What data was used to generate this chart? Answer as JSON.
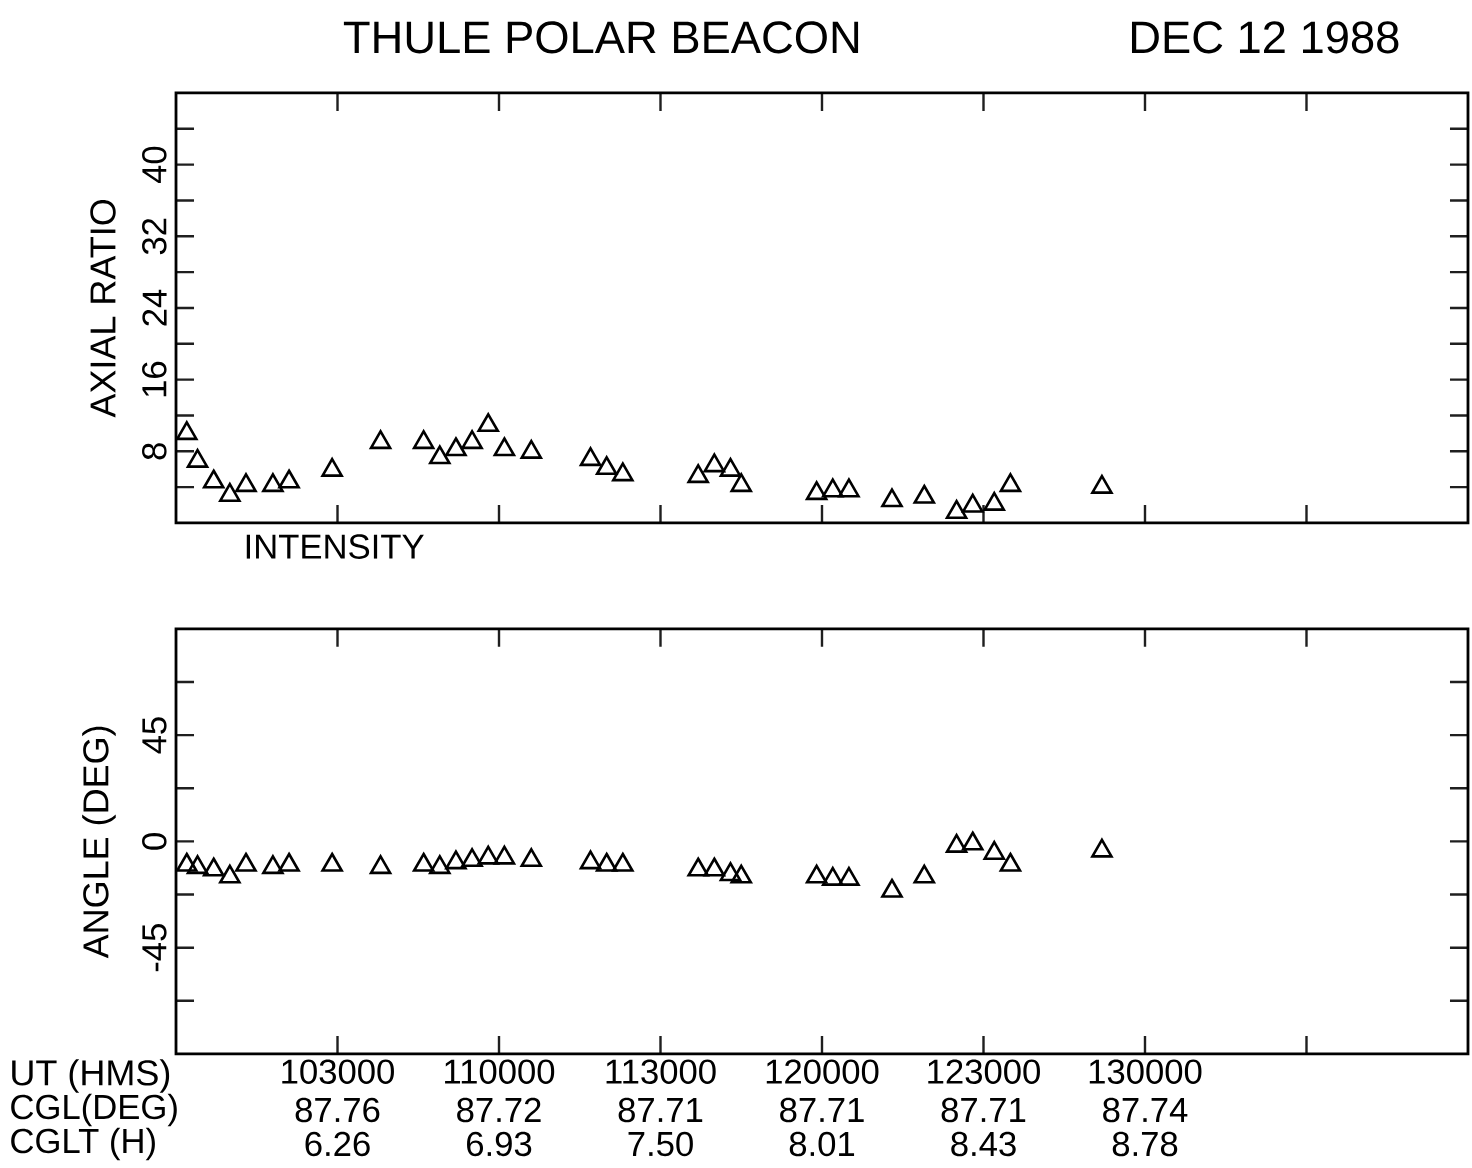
{
  "chart_data": [
    {
      "type": "scatter",
      "title": "THULE POLAR BEACON",
      "subtitle": "DEC 12 1988",
      "ylabel": "AXIAL RATIO",
      "annotations": [
        "INTENSITY"
      ],
      "marker": "triangle",
      "color": "#000000",
      "tick_labels": "y",
      "x": [
        "1988-12-12T10:02",
        "1988-12-12T10:04",
        "1988-12-12T10:07",
        "1988-12-12T10:10",
        "1988-12-12T10:13",
        "1988-12-12T10:18",
        "1988-12-12T10:21",
        "1988-12-12T10:29",
        "1988-12-12T10:38",
        "1988-12-12T10:46",
        "1988-12-12T10:49",
        "1988-12-12T10:52",
        "1988-12-12T10:55",
        "1988-12-12T10:58",
        "1988-12-12T11:01",
        "1988-12-12T11:06",
        "1988-12-12T11:17",
        "1988-12-12T11:20",
        "1988-12-12T11:23",
        "1988-12-12T11:37",
        "1988-12-12T11:40",
        "1988-12-12T11:43",
        "1988-12-12T11:45",
        "1988-12-12T11:59",
        "1988-12-12T12:02",
        "1988-12-12T12:05",
        "1988-12-12T12:13",
        "1988-12-12T12:19",
        "1988-12-12T12:25",
        "1988-12-12T12:28",
        "1988-12-12T12:32",
        "1988-12-12T12:35",
        "1988-12-12T12:52"
      ],
      "values": [
        10.0,
        6.9,
        4.6,
        3.1,
        4.2,
        4.2,
        4.6,
        5.9,
        9.0,
        9.0,
        7.3,
        8.2,
        9.0,
        10.9,
        8.2,
        7.9,
        7.1,
        6.1,
        5.4,
        5.2,
        6.4,
        5.9,
        4.2,
        3.3,
        3.6,
        3.6,
        2.5,
        2.9,
        1.2,
        1.9,
        2.1,
        4.2,
        4.0
      ],
      "xlim": [
        "1988-12-12T10:00",
        "1988-12-12T14:00"
      ],
      "xticks": [
        {
          "value": "1988-12-12T10:30",
          "label": null
        },
        {
          "value": "1988-12-12T11:00",
          "label": null
        },
        {
          "value": "1988-12-12T11:30",
          "label": null
        },
        {
          "value": "1988-12-12T12:00",
          "label": null
        },
        {
          "value": "1988-12-12T12:30",
          "label": null
        },
        {
          "value": "1988-12-12T13:00",
          "label": null
        },
        {
          "value": "1988-12-12T13:30",
          "label": null
        }
      ],
      "ylim": [
        0,
        48
      ],
      "yticks": [
        {
          "value": 4,
          "label": null
        },
        8,
        {
          "value": 12,
          "label": null
        },
        16,
        {
          "value": 20,
          "label": null
        },
        24,
        {
          "value": 28,
          "label": null
        },
        32,
        {
          "value": 36,
          "label": null
        },
        40,
        {
          "value": 44,
          "label": null
        }
      ]
    },
    {
      "type": "scatter",
      "xlabel": "UT (HMS)",
      "ylabel": "ANGLE (DEG)",
      "marker": "triangle",
      "color": "#000000",
      "annotations": [
        "CGL(DEG)",
        "87.76",
        "87.72",
        "87.71",
        "87.71",
        "87.71",
        "87.74",
        "CGLT (H)",
        "6.26",
        "6.93",
        "7.50",
        "8.01",
        "8.43",
        "8.78"
      ],
      "x": [
        "1988-12-12T10:02",
        "1988-12-12T10:04",
        "1988-12-12T10:07",
        "1988-12-12T10:10",
        "1988-12-12T10:13",
        "1988-12-12T10:18",
        "1988-12-12T10:21",
        "1988-12-12T10:29",
        "1988-12-12T10:38",
        "1988-12-12T10:46",
        "1988-12-12T10:49",
        "1988-12-12T10:52",
        "1988-12-12T10:55",
        "1988-12-12T10:58",
        "1988-12-12T11:01",
        "1988-12-12T11:06",
        "1988-12-12T11:17",
        "1988-12-12T11:20",
        "1988-12-12T11:23",
        "1988-12-12T11:37",
        "1988-12-12T11:40",
        "1988-12-12T11:43",
        "1988-12-12T11:45",
        "1988-12-12T11:59",
        "1988-12-12T12:02",
        "1988-12-12T12:05",
        "1988-12-12T12:13",
        "1988-12-12T12:19",
        "1988-12-12T12:25",
        "1988-12-12T12:28",
        "1988-12-12T12:32",
        "1988-12-12T12:35",
        "1988-12-12T12:52"
      ],
      "values": [
        -10,
        -11,
        -12,
        -15,
        -10,
        -11,
        -10,
        -10,
        -11,
        -10,
        -11,
        -9,
        -8,
        -7,
        -7,
        -8,
        -9,
        -10,
        -10,
        -12,
        -12,
        -14,
        -15,
        -15,
        -16,
        -16,
        -21,
        -15,
        -2,
        -1,
        -5,
        -10,
        -4
      ],
      "xlim": [
        "1988-12-12T10:00",
        "1988-12-12T14:00"
      ],
      "xticks": [
        {
          "value": "1988-12-12T10:30",
          "label": "103000"
        },
        {
          "value": "1988-12-12T11:00",
          "label": "110000"
        },
        {
          "value": "1988-12-12T11:30",
          "label": "113000"
        },
        {
          "value": "1988-12-12T12:00",
          "label": "120000"
        },
        {
          "value": "1988-12-12T12:30",
          "label": "123000"
        },
        {
          "value": "1988-12-12T13:00",
          "label": "130000"
        },
        {
          "value": "1988-12-12T13:30",
          "label": null
        }
      ],
      "ylim": [
        -90,
        90
      ],
      "yticks": [
        {
          "value": -67.5,
          "label": null
        },
        -45,
        {
          "value": -22.5,
          "label": null
        },
        0,
        {
          "value": 22.5,
          "label": null
        },
        45,
        {
          "value": 67.5,
          "label": null
        }
      ]
    }
  ]
}
